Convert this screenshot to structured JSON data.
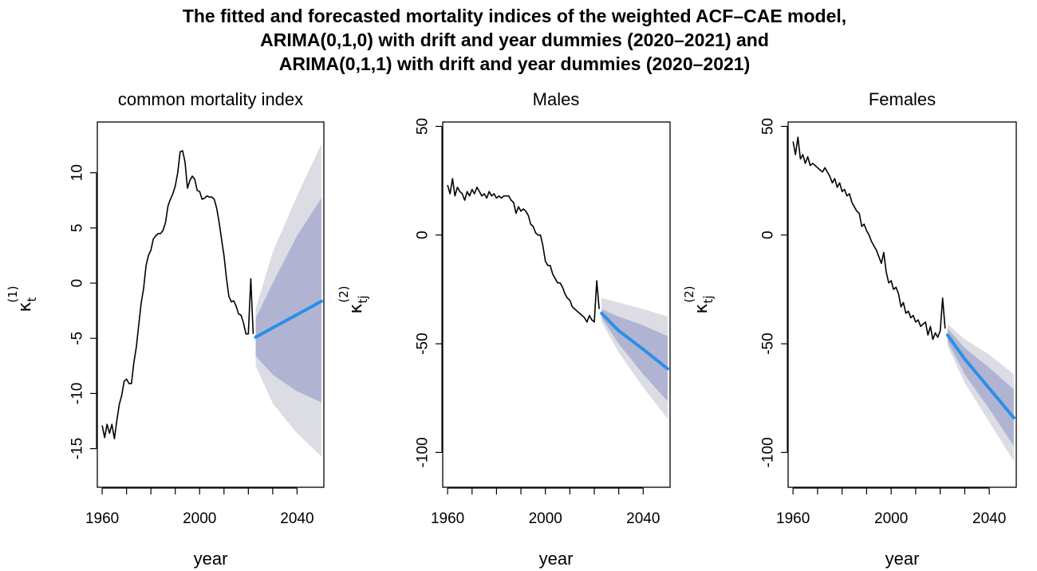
{
  "figure": {
    "title_lines": [
      "The fitted and forecasted mortality indices of the weighted ACF–CAE model,",
      "ARIMA(0,1,0) with drift and year dummies (2020–2021) and",
      "ARIMA(0,1,1) with drift and year dummies (2020–2021)"
    ]
  },
  "colors": {
    "fitted_line": "#000000",
    "forecast_mean": "#2b8fe6",
    "band_80": "#b0b4d2",
    "band_95": "#dcdce4",
    "axis": "#000000"
  },
  "chart_data": [
    {
      "type": "line",
      "title": "common mortality index",
      "xlabel": "year",
      "ylabel": {
        "main": "κ",
        "sub": "t",
        "sup": "(1)"
      },
      "xlim": [
        1958,
        2051
      ],
      "ylim": [
        -18.5,
        14.6
      ],
      "xticks": [
        1960,
        1970,
        1980,
        1990,
        2000,
        2010,
        2020,
        2030,
        2040,
        2050
      ],
      "xtick_labels": [
        "1960",
        "",
        "2000",
        "",
        "2040"
      ],
      "xtick_label_values": [
        1960,
        1980,
        2000,
        2020,
        2040
      ],
      "yticks": [
        -15,
        -10,
        -5,
        0,
        5,
        10
      ],
      "ytick_labels": [
        "-15",
        "-10",
        "-5",
        "0",
        "5",
        "10"
      ],
      "fitted": {
        "x": [
          1960,
          1961,
          1962,
          1963,
          1964,
          1965,
          1966,
          1967,
          1968,
          1969,
          1970,
          1971,
          1972,
          1973,
          1974,
          1975,
          1976,
          1977,
          1978,
          1979,
          1980,
          1981,
          1982,
          1983,
          1984,
          1985,
          1986,
          1987,
          1988,
          1989,
          1990,
          1991,
          1992,
          1993,
          1994,
          1995,
          1996,
          1997,
          1998,
          1999,
          2000,
          2001,
          2002,
          2003,
          2004,
          2005,
          2006,
          2007,
          2008,
          2009,
          2010,
          2011,
          2012,
          2013,
          2014,
          2015,
          2016,
          2017,
          2018,
          2019,
          2020,
          2021,
          2022
        ],
        "y": [
          -12.9,
          -14.0,
          -12.8,
          -13.6,
          -12.8,
          -14.1,
          -12.5,
          -11.0,
          -10.2,
          -8.9,
          -8.7,
          -9.1,
          -9.1,
          -7.2,
          -5.8,
          -3.8,
          -1.8,
          -0.5,
          1.6,
          2.5,
          3.0,
          4.0,
          4.3,
          4.5,
          4.5,
          4.8,
          5.5,
          7.0,
          7.6,
          8.1,
          8.8,
          10.0,
          11.9,
          12.0,
          11.0,
          8.6,
          9.3,
          9.7,
          9.4,
          8.4,
          8.3,
          7.6,
          7.7,
          7.9,
          7.8,
          7.8,
          7.6,
          6.8,
          5.5,
          4.0,
          2.5,
          0.5,
          -1.2,
          -1.7,
          -1.6,
          -2.1,
          -2.8,
          -2.9,
          -3.6,
          -4.6,
          -4.6,
          0.4,
          -4.6
        ]
      },
      "forecast": {
        "x": [
          2023,
          2030,
          2040,
          2050
        ],
        "mean": [
          -4.9,
          -4.05,
          -2.85,
          -1.65
        ],
        "lo80": [
          -6.6,
          -8.3,
          -9.8,
          -10.8
        ],
        "hi80": [
          -3.2,
          0.0,
          4.3,
          7.7
        ],
        "lo95": [
          -7.5,
          -10.9,
          -13.6,
          -15.7
        ],
        "hi95": [
          -2.3,
          2.8,
          7.9,
          12.6
        ]
      }
    },
    {
      "type": "line",
      "title": "Males",
      "xlabel": "year",
      "ylabel": {
        "main": "κ",
        "sub": "tj",
        "sup": "(2)"
      },
      "xlim": [
        1958,
        2051
      ],
      "ylim": [
        -116,
        52
      ],
      "xticks": [
        1960,
        1970,
        1980,
        1990,
        2000,
        2010,
        2020,
        2030,
        2040,
        2050
      ],
      "xtick_labels": [
        "1960",
        "",
        "2000",
        "",
        "2040"
      ],
      "xtick_label_values": [
        1960,
        1980,
        2000,
        2020,
        2040
      ],
      "yticks": [
        -100,
        -50,
        0,
        50
      ],
      "ytick_labels": [
        "-100",
        "-50",
        "0",
        "50"
      ],
      "fitted": {
        "x": [
          1960,
          1961,
          1962,
          1963,
          1964,
          1965,
          1966,
          1967,
          1968,
          1969,
          1970,
          1971,
          1972,
          1973,
          1974,
          1975,
          1976,
          1977,
          1978,
          1979,
          1980,
          1981,
          1982,
          1983,
          1984,
          1985,
          1986,
          1987,
          1988,
          1989,
          1990,
          1991,
          1992,
          1993,
          1994,
          1995,
          1996,
          1997,
          1998,
          1999,
          2000,
          2001,
          2002,
          2003,
          2004,
          2005,
          2006,
          2007,
          2008,
          2009,
          2010,
          2011,
          2012,
          2013,
          2014,
          2015,
          2016,
          2017,
          2018,
          2019,
          2020,
          2021,
          2022
        ],
        "y": [
          23,
          19,
          26,
          18,
          22,
          20,
          19,
          16,
          20,
          18,
          21,
          19,
          22,
          20,
          18,
          19,
          17,
          20,
          18,
          19,
          17,
          18,
          17,
          18,
          18,
          18,
          16,
          15,
          10,
          13,
          11,
          12,
          11,
          9,
          5,
          4,
          1,
          0,
          0,
          -5,
          -12,
          -14,
          -14,
          -18,
          -20,
          -22,
          -22,
          -24,
          -27,
          -29,
          -30,
          -33,
          -34,
          -35,
          -36,
          -37,
          -38,
          -40,
          -37,
          -39,
          -40,
          -21,
          -34
        ]
      },
      "forecast": {
        "x": [
          2023,
          2030,
          2040,
          2050
        ],
        "mean": [
          -36,
          -44,
          -52.5,
          -61.5
        ],
        "lo80": [
          -38,
          -50,
          -64,
          -76.5
        ],
        "hi80": [
          -34,
          -37.5,
          -41.5,
          -46.5
        ],
        "lo95": [
          -40,
          -54,
          -70,
          -84.5
        ],
        "hi95": [
          -29,
          -31,
          -34,
          -37.5
        ]
      }
    },
    {
      "type": "line",
      "title": "Females",
      "xlabel": "year",
      "ylabel": {
        "main": "κ",
        "sub": "tj",
        "sup": "(2)"
      },
      "xlim": [
        1958,
        2051
      ],
      "ylim": [
        -116,
        52
      ],
      "xticks": [
        1960,
        1970,
        1980,
        1990,
        2000,
        2010,
        2020,
        2030,
        2040,
        2050
      ],
      "xtick_labels": [
        "1960",
        "",
        "2000",
        "",
        "2040"
      ],
      "xtick_label_values": [
        1960,
        1980,
        2000,
        2020,
        2040
      ],
      "yticks": [
        -100,
        -50,
        0,
        50
      ],
      "ytick_labels": [
        "-100",
        "-50",
        "0",
        "50"
      ],
      "fitted": {
        "x": [
          1960,
          1961,
          1962,
          1963,
          1964,
          1965,
          1966,
          1967,
          1968,
          1969,
          1970,
          1971,
          1972,
          1973,
          1974,
          1975,
          1976,
          1977,
          1978,
          1979,
          1980,
          1981,
          1982,
          1983,
          1984,
          1985,
          1986,
          1987,
          1988,
          1989,
          1990,
          1991,
          1992,
          1993,
          1994,
          1995,
          1996,
          1997,
          1998,
          1999,
          2000,
          2001,
          2002,
          2003,
          2004,
          2005,
          2006,
          2007,
          2008,
          2009,
          2010,
          2011,
          2012,
          2013,
          2014,
          2015,
          2016,
          2017,
          2018,
          2019,
          2020,
          2021,
          2022
        ],
        "y": [
          43,
          37,
          45,
          35,
          37,
          33,
          36,
          32,
          33,
          32,
          31,
          30,
          29,
          31,
          29,
          27,
          24,
          26,
          22,
          24,
          20,
          21,
          18,
          19,
          15,
          13,
          11,
          10,
          4,
          5,
          2,
          0,
          -3,
          -5,
          -7,
          -10,
          -13,
          -8,
          -17,
          -22,
          -21,
          -25,
          -24,
          -27,
          -33,
          -31,
          -36,
          -35,
          -38,
          -37,
          -40,
          -39,
          -42,
          -41,
          -40,
          -46,
          -42,
          -48,
          -45,
          -47,
          -44,
          -29,
          -43
        ]
      },
      "forecast": {
        "x": [
          2023,
          2030,
          2040,
          2050
        ],
        "mean": [
          -46,
          -57,
          -70.5,
          -84
        ],
        "lo80": [
          -49,
          -64,
          -80,
          -97
        ],
        "hi80": [
          -43,
          -52,
          -61,
          -71
        ],
        "lo95": [
          -51,
          -68,
          -86,
          -104
        ],
        "hi95": [
          -41,
          -48,
          -55,
          -64
        ]
      }
    }
  ]
}
